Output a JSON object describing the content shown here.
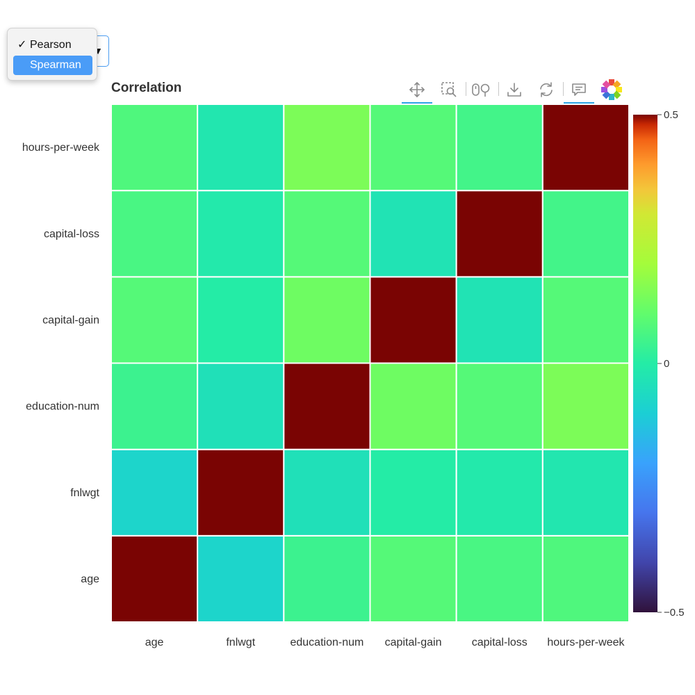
{
  "method_select": {
    "options": [
      {
        "label": "Pearson",
        "checked": true
      },
      {
        "label": "Spearman",
        "highlighted": true
      }
    ],
    "arrow": "▼"
  },
  "toolbar": {
    "tools": [
      {
        "name": "pan-tool",
        "icon": "move-arrows-icon",
        "active": true
      },
      {
        "name": "box-zoom-tool",
        "icon": "box-zoom-icon",
        "active": false
      },
      {
        "name": "wheel-zoom-tool",
        "icon": "wheel-zoom-icon",
        "active": false
      },
      {
        "name": "save-tool",
        "icon": "download-icon",
        "active": false
      },
      {
        "name": "reset-tool",
        "icon": "refresh-icon",
        "active": false
      },
      {
        "name": "hover-tool",
        "icon": "tooltip-icon",
        "active": true
      },
      {
        "name": "bokeh-logo",
        "icon": "bokeh-logo-icon",
        "active": false
      }
    ]
  },
  "chart_data": {
    "type": "heatmap",
    "title": "Correlation",
    "variables": [
      "age",
      "fnlwgt",
      "education-num",
      "capital-gain",
      "capital-loss",
      "hours-per-week"
    ],
    "matrix": [
      [
        1.0,
        -0.08,
        0.04,
        0.08,
        0.06,
        0.07
      ],
      [
        -0.08,
        1.0,
        -0.04,
        0.0,
        -0.01,
        -0.02
      ],
      [
        0.04,
        -0.04,
        1.0,
        0.12,
        0.08,
        0.14
      ],
      [
        0.08,
        0.0,
        0.12,
        1.0,
        -0.03,
        0.08
      ],
      [
        0.06,
        -0.01,
        0.08,
        -0.03,
        1.0,
        0.05
      ],
      [
        0.07,
        -0.02,
        0.14,
        0.08,
        0.05,
        1.0
      ]
    ],
    "colorbar": {
      "min": -0.5,
      "max": 0.5,
      "ticks": [
        "0.5",
        "0",
        "−0.5"
      ],
      "colormap": "turbo"
    },
    "grid": false
  }
}
